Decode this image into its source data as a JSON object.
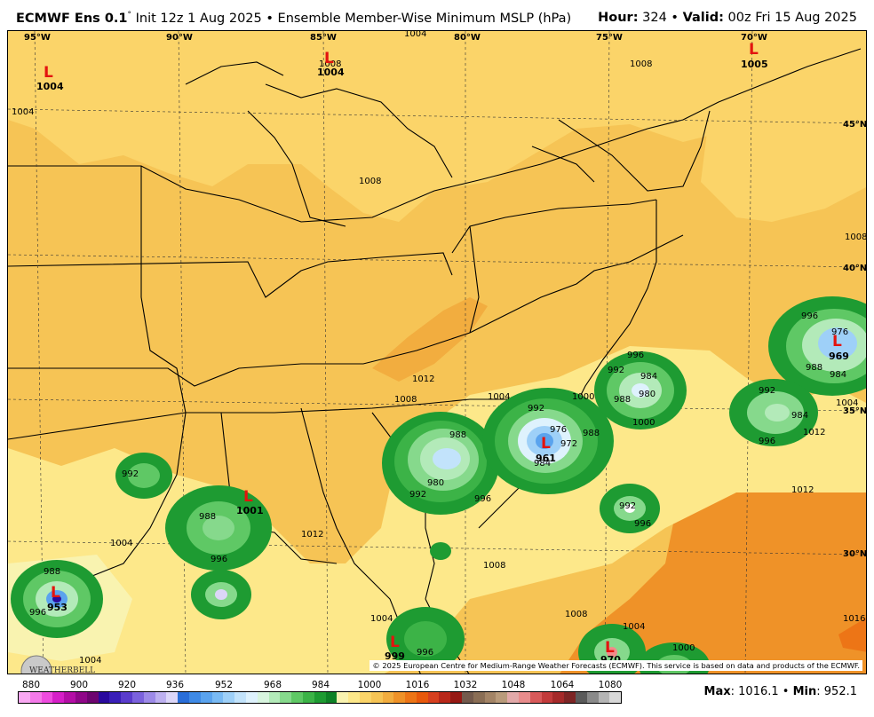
{
  "header": {
    "model": "ECMWF Ens 0.1",
    "init": "Init 12z 1 Aug 2025",
    "bullet": "•",
    "product": "Ensemble Member-Wise Minimum MSLP (hPa)",
    "hour_label": "Hour:",
    "hour_value": "324",
    "valid_label": "Valid:",
    "valid_value": "00z Fri 15 Aug 2025"
  },
  "longitudes": [
    "95°W",
    "90°W",
    "85°W",
    "80°W",
    "75°W",
    "70°W"
  ],
  "latitudes": [
    "45°N",
    "40°N",
    "35°N",
    "30°N"
  ],
  "contour_labels": [
    "1004",
    "1004",
    "1008",
    "1008",
    "1008",
    "1012",
    "1012",
    "1008",
    "1012",
    "1004",
    "1004",
    "1008",
    "1008",
    "1004",
    "1000",
    "1004",
    "996",
    "992",
    "988",
    "984",
    "980",
    "976",
    "972",
    "1000",
    "996",
    "992",
    "988",
    "984",
    "980",
    "976",
    "1012",
    "1004",
    "996",
    "992",
    "988",
    "996",
    "992",
    "988",
    "992",
    "996",
    "1000",
    "988",
    "984",
    "996",
    "992",
    "988",
    "996",
    "984",
    "1008",
    "1016",
    "1004",
    "996"
  ],
  "lows": [
    {
      "symbol": "L",
      "value": "1004"
    },
    {
      "symbol": "L",
      "value": "1004"
    },
    {
      "symbol": "L",
      "value": "1005"
    },
    {
      "symbol": "L",
      "value": "1001"
    },
    {
      "symbol": "L",
      "value": "961"
    },
    {
      "symbol": "L",
      "value": "969"
    },
    {
      "symbol": "L",
      "value": "953"
    },
    {
      "symbol": "L",
      "value": "999"
    },
    {
      "symbol": "L",
      "value": "970"
    }
  ],
  "credit": "© 2025 European Centre for Medium-Range Weather Forecasts (ECMWF). This service is based on data and products of the ECMWF.",
  "logo_text": "WEATHERBELL",
  "colorbar": {
    "ticks": [
      "880",
      "900",
      "920",
      "936",
      "952",
      "968",
      "984",
      "1000",
      "1016",
      "1032",
      "1048",
      "1064",
      "1080"
    ],
    "colors": [
      "#f9a8f2",
      "#f47ae9",
      "#ee4cdf",
      "#d61fc8",
      "#b40ea6",
      "#8f0788",
      "#6d0570",
      "#2a0a9e",
      "#3a1fb8",
      "#5a3ccc",
      "#7b62dd",
      "#9d8ae8",
      "#bdb0f0",
      "#dcd6f8",
      "#2a6ed8",
      "#3f8ae6",
      "#5aa3ee",
      "#79baf4",
      "#9ed0f8",
      "#c2e3fb",
      "#def2fd",
      "#d8f5df",
      "#b3eab9",
      "#86d98c",
      "#5fc865",
      "#3cb347",
      "#1e9b32",
      "#0e8126",
      "#f9f3b0",
      "#fde88a",
      "#fbd469",
      "#f6c455",
      "#f2ad3f",
      "#ef9228",
      "#ed7516",
      "#e8590c",
      "#d7401f",
      "#b8281a",
      "#961914",
      "#735a4c",
      "#8a6e55",
      "#a38466",
      "#b99b7b",
      "#e2a9a9",
      "#e88c8c",
      "#d85a5a",
      "#c23b3b",
      "#a52a2a",
      "#7d2525",
      "#5b5b5b",
      "#8a8a8a",
      "#b5b5b5",
      "#d8d8d8"
    ]
  },
  "stats": {
    "max_label": "Max",
    "max_value": "1016.1",
    "sep": "•",
    "min_label": "Min",
    "min_value": "952.1"
  }
}
